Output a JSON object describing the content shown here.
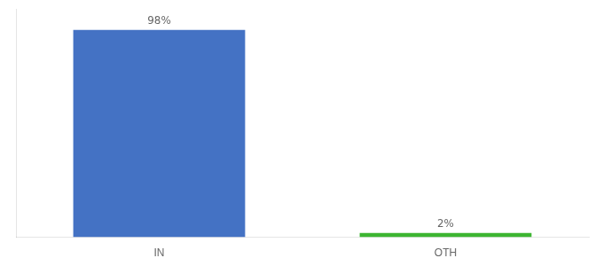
{
  "chart_data": {
    "type": "bar",
    "categories": [
      "IN",
      "OTH"
    ],
    "values": [
      98,
      2
    ],
    "value_labels": [
      "98%",
      "2%"
    ],
    "colors": [
      "#4472C4",
      "#3CB531"
    ],
    "ylim": [
      0,
      108
    ],
    "data_labels": true,
    "tick_labels": "x",
    "grid": false
  }
}
